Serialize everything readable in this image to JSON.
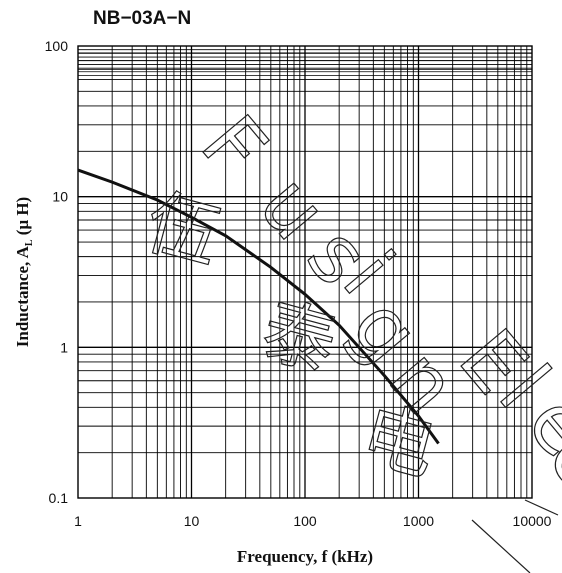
{
  "chart_data": {
    "type": "line",
    "title": "NB−03A−N",
    "xlabel": "Frequency, f (kHz)",
    "ylabel_main": "Inductance, A",
    "ylabel_sub": "L",
    "ylabel_tail": " (μ H)",
    "x_scale": "log",
    "y_scale": "log",
    "xlim": [
      1,
      10000
    ],
    "ylim": [
      0.1,
      100
    ],
    "x_ticks": [
      {
        "value": 1,
        "label": "1"
      },
      {
        "value": 10,
        "label": "10"
      },
      {
        "value": 100,
        "label": "100"
      },
      {
        "value": 1000,
        "label": "1000"
      },
      {
        "value": 10000,
        "label": "10000"
      }
    ],
    "y_ticks": [
      {
        "value": 0.1,
        "label": "0.1"
      },
      {
        "value": 1,
        "label": "1"
      },
      {
        "value": 10,
        "label": "10"
      },
      {
        "value": 100,
        "label": "100"
      }
    ],
    "grid": true,
    "series": [
      {
        "color": "#111111",
        "x": [
          1,
          2,
          5,
          10,
          20,
          50,
          100,
          200,
          500,
          1000,
          1500
        ],
        "y": [
          15,
          12.5,
          9.5,
          7.3,
          5.5,
          3.4,
          2.25,
          1.4,
          0.65,
          0.35,
          0.23
        ]
      }
    ]
  },
  "watermark": {
    "latin": [
      "F",
      "u",
      "s",
      "i",
      "g",
      "n",
      "E",
      "l",
      "e",
      "c"
    ],
    "cjk": [
      "伍",
      "泰",
      "电"
    ]
  }
}
